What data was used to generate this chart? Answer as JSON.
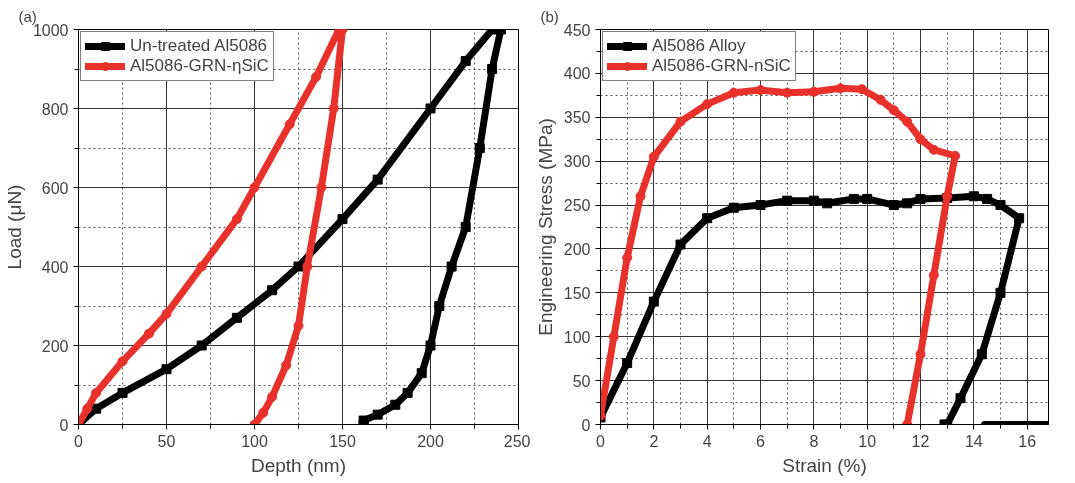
{
  "chart_data": [
    {
      "type": "line",
      "annotations": [
        "(a)"
      ],
      "xlabel": "Depth (nm)",
      "ylabel": "Load (μN)",
      "xlim": [
        0,
        250
      ],
      "ylim": [
        0,
        1000
      ],
      "xticks": [
        0,
        50,
        100,
        150,
        200,
        250
      ],
      "yticks": [
        0,
        200,
        400,
        600,
        800,
        1000
      ],
      "grid": true,
      "legend": "top left",
      "series": [
        {
          "name": "Un-treated Al5086",
          "color": "#000000",
          "marker": "square",
          "x": [
            0,
            10,
            25,
            50,
            70,
            90,
            110,
            125,
            150,
            170,
            200,
            220,
            235,
            240,
            235,
            228,
            220,
            212,
            205,
            200,
            195,
            187,
            180,
            170,
            162,
            162
          ],
          "values": [
            0,
            40,
            80,
            140,
            200,
            270,
            340,
            400,
            520,
            620,
            800,
            920,
            1000,
            1000,
            900,
            700,
            500,
            400,
            300,
            200,
            130,
            80,
            50,
            25,
            10,
            0
          ]
        },
        {
          "name": "Al5086-GRN-ηSiC",
          "color": "#e8312a",
          "marker": "circle",
          "x": [
            0,
            5,
            10,
            25,
            40,
            50,
            70,
            90,
            100,
            120,
            135,
            148,
            150,
            145,
            138,
            130,
            125,
            118,
            110,
            105,
            100
          ],
          "values": [
            0,
            40,
            80,
            160,
            230,
            280,
            400,
            520,
            600,
            760,
            880,
            1000,
            1000,
            800,
            600,
            400,
            250,
            150,
            70,
            30,
            0
          ]
        }
      ]
    },
    {
      "type": "line",
      "annotations": [
        "(b)"
      ],
      "xlabel": "Strain (%)",
      "ylabel": "Engineering Stress (MPa)",
      "xlim": [
        0,
        16.8
      ],
      "ylim": [
        0,
        450
      ],
      "xticks": [
        0,
        2,
        4,
        6,
        8,
        10,
        12,
        14,
        16
      ],
      "yticks": [
        0,
        50,
        100,
        150,
        200,
        250,
        300,
        350,
        400,
        450
      ],
      "grid": true,
      "legend": "top left",
      "series": [
        {
          "name": "Al5086 Alloy",
          "color": "#000000",
          "marker": "square",
          "x": [
            0,
            1,
            2,
            3,
            4,
            5,
            6,
            7,
            8,
            8.5,
            9.5,
            10,
            11,
            11.5,
            12,
            13,
            14,
            14.5,
            15,
            15.7,
            15,
            14.3,
            13.5,
            13,
            12.9
          ],
          "values": [
            8,
            70,
            140,
            205,
            235,
            247,
            250,
            255,
            255,
            252,
            257,
            257,
            250,
            252,
            257,
            258,
            260,
            257,
            250,
            235,
            150,
            80,
            30,
            0,
            0
          ]
        },
        {
          "name": "Al5086-GRN-nSiC",
          "color": "#e8312a",
          "marker": "circle",
          "x": [
            0,
            0.5,
            1,
            1.5,
            2,
            3,
            4,
            5,
            6,
            7,
            8,
            9,
            9.8,
            10.5,
            11,
            11.5,
            12,
            12.5,
            13.3,
            13,
            12.5,
            12,
            11.5
          ],
          "values": [
            10,
            100,
            190,
            260,
            305,
            345,
            365,
            378,
            381,
            378,
            379,
            383,
            382,
            370,
            358,
            345,
            325,
            313,
            306,
            260,
            170,
            80,
            0
          ]
        },
        {
          "color": "#000000",
          "marker": "none",
          "x": [
            14.4,
            16.8
          ],
          "values": [
            0,
            0
          ]
        }
      ]
    }
  ]
}
